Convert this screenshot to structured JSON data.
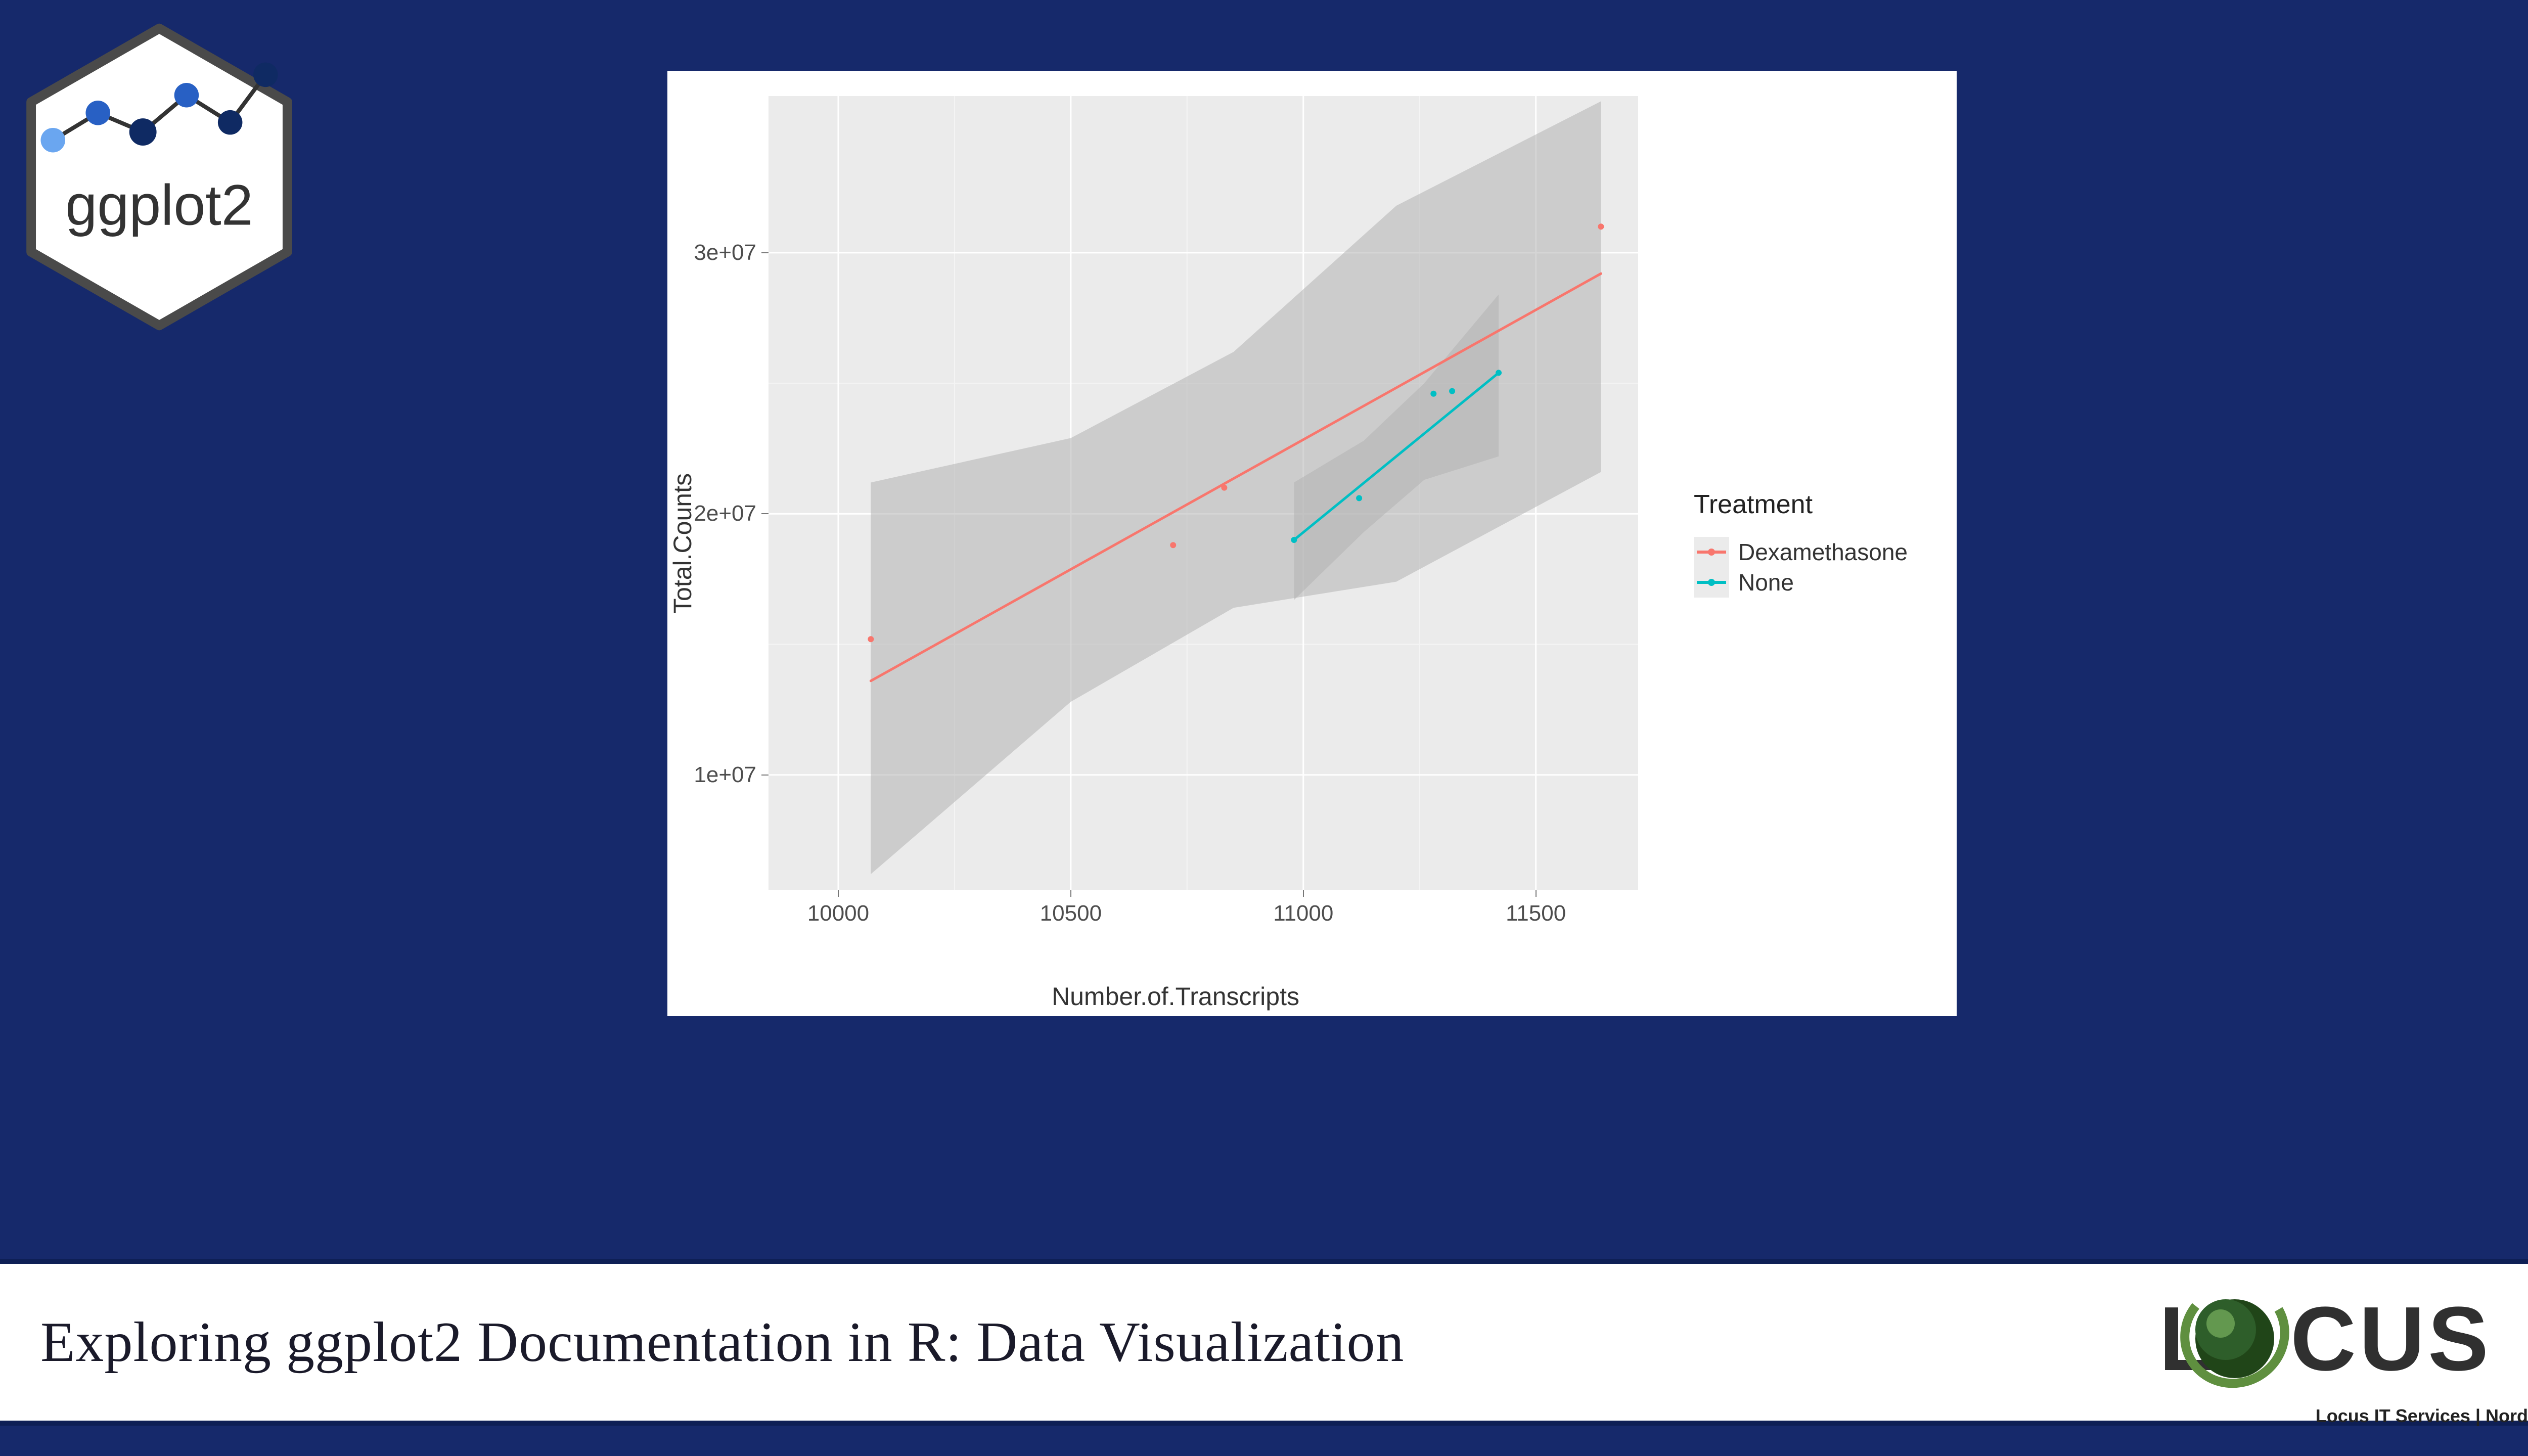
{
  "colors": {
    "page_bg": "#16296b",
    "card_bg": "#ffffff",
    "panel_bg": "#ebebeb",
    "grid_major": "#ffffff",
    "grid_minor": "#f4f4f4",
    "ribbon": "#b3b3b3",
    "ribbon_opacity": 0.55,
    "series_dex": "#f8766d",
    "series_none": "#00bfc4",
    "axis_text": "#4d4d4d",
    "axis_title": "#333333"
  },
  "logo": {
    "label": "ggplot2",
    "hex_border": "#4a4a4a",
    "hex_fill": "#ffffff",
    "dot_dark": "#0f2a63",
    "dot_mid": "#2860c4",
    "dot_light": "#6aa6f0"
  },
  "chart": {
    "type": "scatter-with-lm",
    "x_label": "Number.of.Transcripts",
    "y_label": "Total.Counts",
    "x_ticks": [
      10000,
      10500,
      11000,
      11500
    ],
    "x_tick_labels": [
      "10000",
      "10500",
      "11000",
      "11500"
    ],
    "y_ticks": [
      10000000,
      20000000,
      30000000
    ],
    "y_tick_labels": [
      "1e+07",
      "2e+07",
      "3e+07"
    ],
    "xlim": [
      9850,
      11720
    ],
    "ylim": [
      5600000,
      36000000
    ],
    "point_radius": 6,
    "line_width": 5,
    "series": [
      {
        "name": "Dexamethasone",
        "color_key": "series_dex",
        "points": [
          {
            "x": 10070,
            "y": 15200000
          },
          {
            "x": 10720,
            "y": 18800000
          },
          {
            "x": 10830,
            "y": 21000000
          },
          {
            "x": 11640,
            "y": 31000000
          }
        ],
        "fit": {
          "x0": 10070,
          "y0": 13600000,
          "x1": 11640,
          "y1": 29200000
        },
        "ribbon": [
          {
            "x": 10070,
            "lo": 6200000,
            "hi": 21200000
          },
          {
            "x": 10500,
            "lo": 12800000,
            "hi": 22900000
          },
          {
            "x": 10850,
            "lo": 16400000,
            "hi": 26200000
          },
          {
            "x": 11200,
            "lo": 17400000,
            "hi": 31800000
          },
          {
            "x": 11640,
            "lo": 21600000,
            "hi": 35800000
          }
        ]
      },
      {
        "name": "None",
        "color_key": "series_none",
        "points": [
          {
            "x": 10980,
            "y": 19000000
          },
          {
            "x": 11120,
            "y": 20600000
          },
          {
            "x": 11280,
            "y": 24600000
          },
          {
            "x": 11320,
            "y": 24700000
          },
          {
            "x": 11420,
            "y": 25400000
          }
        ],
        "fit": {
          "x0": 10980,
          "y0": 19000000,
          "x1": 11420,
          "y1": 25400000
        },
        "ribbon": [
          {
            "x": 10980,
            "lo": 16700000,
            "hi": 21200000
          },
          {
            "x": 11130,
            "lo": 19300000,
            "hi": 22800000
          },
          {
            "x": 11260,
            "lo": 21300000,
            "hi": 25000000
          },
          {
            "x": 11420,
            "lo": 22200000,
            "hi": 28400000
          }
        ]
      }
    ],
    "legend": {
      "title": "Treatment",
      "items": [
        {
          "label": "Dexamethasone",
          "color_key": "series_dex"
        },
        {
          "label": "None",
          "color_key": "series_none"
        }
      ]
    }
  },
  "footer": {
    "title": "Exploring ggplot2 Documentation in R: Data Visualization",
    "company_logo": {
      "text_l": "L",
      "text_cus": "CUS",
      "subtitle": "Locus IT Services | Nordic",
      "sphere_fill": "#2e5e2a",
      "sphere_highlight": "#7ab060",
      "ring_color": "#5f8f3f",
      "text_color": "#303030"
    }
  }
}
